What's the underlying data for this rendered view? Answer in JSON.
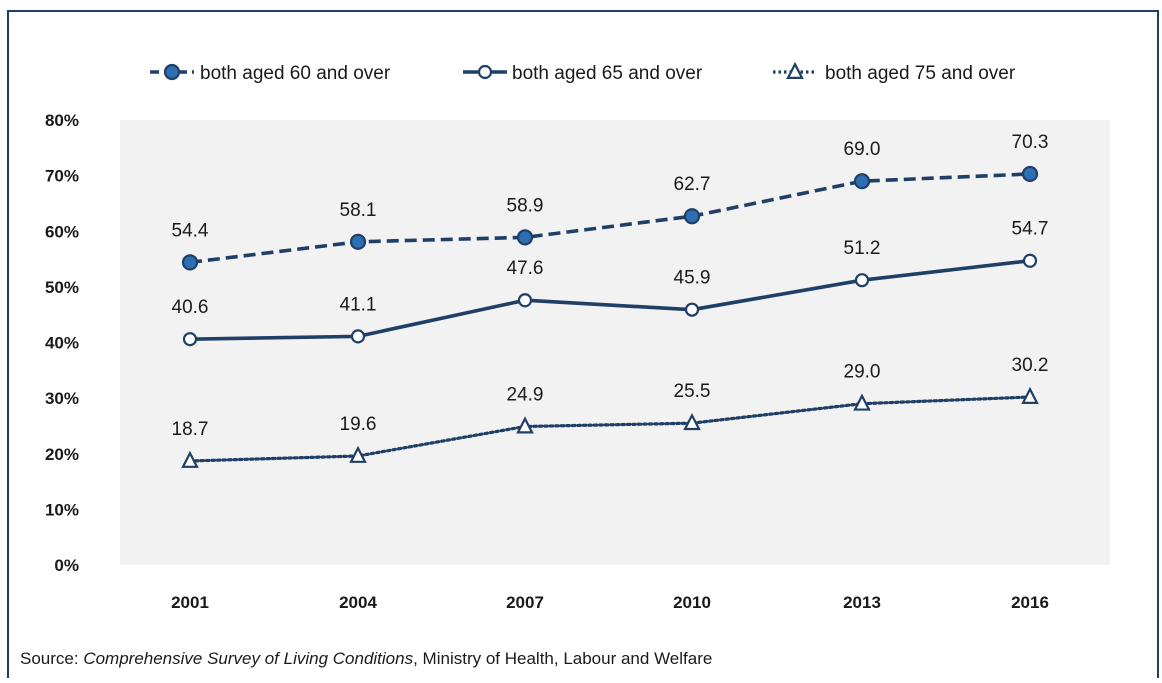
{
  "chart_data": {
    "type": "line",
    "title": "",
    "xlabel": "",
    "ylabel": "",
    "categories": [
      "2001",
      "2004",
      "2007",
      "2010",
      "2013",
      "2016"
    ],
    "ylim": [
      0,
      80
    ],
    "y_ticks": [
      "0%",
      "10%",
      "20%",
      "30%",
      "40%",
      "50%",
      "60%",
      "70%",
      "80%"
    ],
    "grid": false,
    "legend_position": "top",
    "series": [
      {
        "name": "both aged 60 and over",
        "values": [
          54.4,
          58.1,
          58.9,
          62.7,
          69.0,
          70.3
        ],
        "labels": [
          "54.4",
          "58.1",
          "58.9",
          "62.7",
          "69.0",
          "70.3"
        ],
        "line_style": "dashed",
        "marker": "filled-circle",
        "color": "#1f3f66",
        "marker_fill": "#2e6fb4"
      },
      {
        "name": "both aged 65 and over",
        "values": [
          40.6,
          41.1,
          47.6,
          45.9,
          51.2,
          54.7
        ],
        "labels": [
          "40.6",
          "41.1",
          "47.6",
          "45.9",
          "51.2",
          "54.7"
        ],
        "line_style": "solid",
        "marker": "open-circle",
        "color": "#1f3f66",
        "marker_fill": "#ffffff"
      },
      {
        "name": "both aged 75 and over",
        "values": [
          18.7,
          19.6,
          24.9,
          25.5,
          29.0,
          30.2
        ],
        "labels": [
          "18.7",
          "19.6",
          "24.9",
          "25.5",
          "29.0",
          "30.2"
        ],
        "line_style": "dotted",
        "marker": "open-triangle",
        "color": "#1f3f66",
        "marker_fill": "#ffffff"
      }
    ],
    "plot_background": "#f2f2f2"
  },
  "source": {
    "prefix": "Source: ",
    "title": "Comprehensive Survey of Living Conditions",
    "suffix": ", Ministry of Health, Labour and Welfare"
  },
  "colors": {
    "border": "#1f3f66",
    "text": "#1a1a1a"
  }
}
